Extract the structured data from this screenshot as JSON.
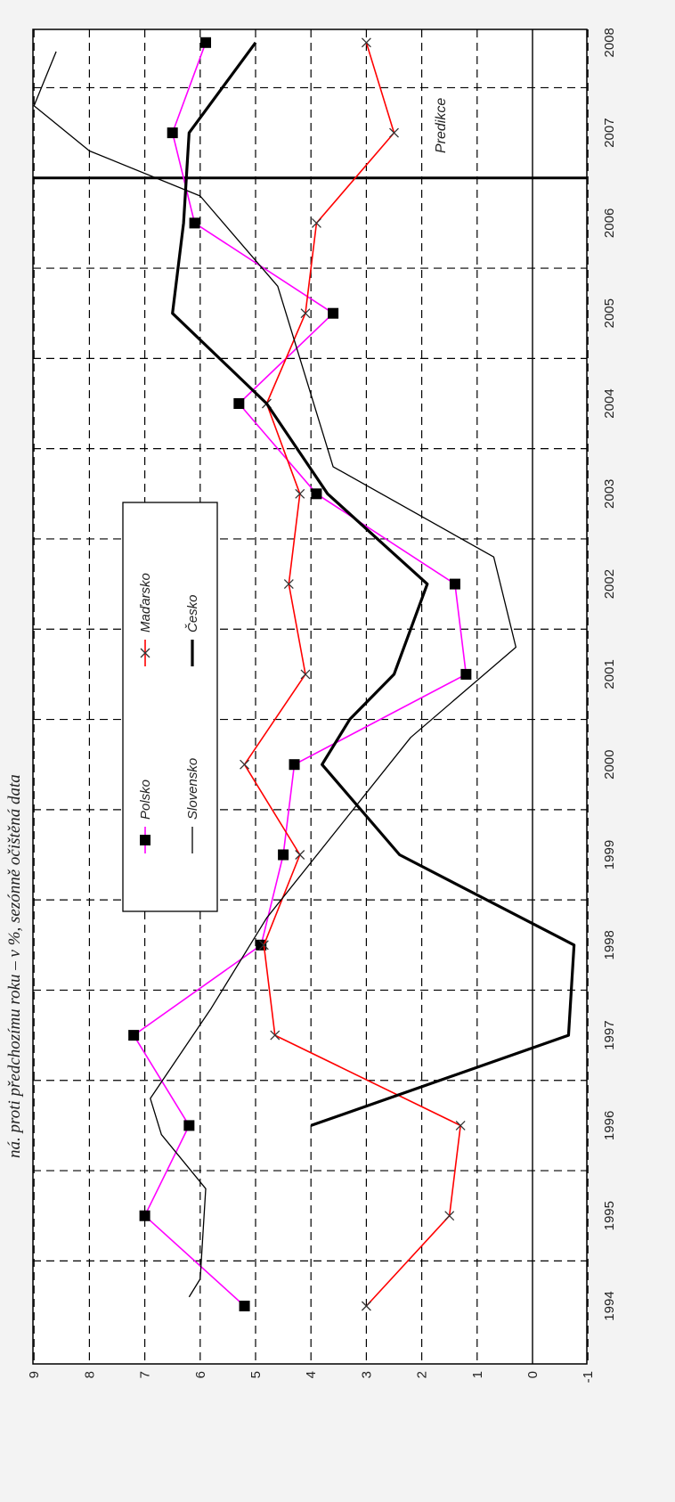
{
  "header_text": "ná. proti předchozímu roku – v %, sezónně očištěná data",
  "chart_data": {
    "type": "line",
    "x": [
      1994,
      1995,
      1996,
      1997,
      1998,
      1999,
      2000,
      2001,
      2002,
      2003,
      2004,
      2005,
      2006,
      2007,
      2008
    ],
    "x_tick_labels": [
      "1994",
      "1995",
      "1996",
      "1997",
      "1998",
      "1999",
      "2000",
      "2001",
      "2002",
      "2003",
      "2004",
      "2005",
      "2006",
      "2007",
      "2008"
    ],
    "y_tick_labels": [
      "9",
      "8",
      "7",
      "6",
      "5",
      "4",
      "3",
      "2",
      "1",
      "0",
      "-1"
    ],
    "ylim": [
      -1,
      9
    ],
    "grid": true,
    "prediction_label": "Predikce",
    "prediction_start": 2006.5,
    "series": [
      {
        "name": "Polsko",
        "color": "#ff00ff",
        "marker": "square",
        "values": [
          5.2,
          7.0,
          6.2,
          7.2,
          4.9,
          4.5,
          4.3,
          1.2,
          1.4,
          3.9,
          5.3,
          3.6,
          6.1,
          6.5,
          5.9
        ]
      },
      {
        "name": "Maďarsko",
        "color": "#ff0000",
        "marker": "x",
        "values": [
          3.0,
          1.5,
          1.3,
          4.65,
          4.85,
          4.2,
          5.2,
          4.1,
          4.4,
          4.2,
          4.8,
          4.1,
          3.9,
          2.5,
          3.0
        ]
      },
      {
        "name": "Slovensko",
        "color": "#000000",
        "marker": "none",
        "x": [
          1994.1,
          1994.3,
          1995.3,
          1995.9,
          1996.3,
          1997.3,
          1998.3,
          1999.3,
          2000.3,
          2001.3,
          2002.3,
          2003.3,
          2004.3,
          2005.3,
          2006.3,
          2006.8,
          2007.3,
          2007.9
        ],
        "values": [
          6.2,
          6.0,
          5.9,
          6.7,
          6.9,
          5.8,
          4.8,
          3.5,
          2.2,
          0.3,
          0.7,
          3.6,
          4.1,
          4.6,
          6.0,
          8.0,
          9.0,
          8.6
        ]
      },
      {
        "name": "Česko",
        "color": "#000000",
        "marker": "none",
        "x": [
          1996,
          1997,
          1998,
          1999,
          2000,
          2000.5,
          2001,
          2002,
          2003,
          2004,
          2005,
          2006,
          2007,
          2008
        ],
        "values": [
          4.0,
          -0.65,
          -0.75,
          2.4,
          3.8,
          3.3,
          2.5,
          1.9,
          3.7,
          4.8,
          6.5,
          6.3,
          6.2,
          5.0
        ]
      }
    ],
    "legend": {
      "placement": "center",
      "entries": [
        {
          "label": "Polsko"
        },
        {
          "label": "Maďarsko"
        },
        {
          "label": "Slovensko"
        },
        {
          "label": "Česko"
        }
      ]
    }
  }
}
